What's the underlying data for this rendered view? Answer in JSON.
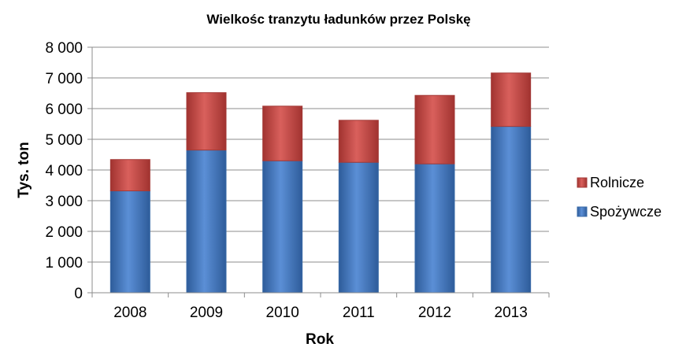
{
  "chart_data": {
    "type": "bar",
    "stacked": true,
    "title": "Wielkośc tranzytu ładunków przez Polskę",
    "xlabel": "Rok",
    "ylabel": "Tys. ton",
    "categories": [
      "2008",
      "2009",
      "2010",
      "2011",
      "2012",
      "2013"
    ],
    "ylim": [
      0,
      8000
    ],
    "yticks": [
      0,
      1000,
      2000,
      3000,
      4000,
      5000,
      6000,
      7000,
      8000
    ],
    "ytick_labels": [
      "0",
      "1 000",
      "2 000",
      "3 000",
      "4 000",
      "5 000",
      "6 000",
      "7 000",
      "8 000"
    ],
    "grid": true,
    "legend_position": "right",
    "series": [
      {
        "name": "Spożywcze",
        "color": "#4A7EBB",
        "values": [
          3320,
          4650,
          4300,
          4250,
          4200,
          5420
        ]
      },
      {
        "name": "Rolnicze",
        "color": "#C0504D",
        "values": [
          1020,
          1870,
          1780,
          1370,
          2230,
          1740
        ]
      }
    ],
    "legend_order": [
      1,
      0
    ]
  }
}
